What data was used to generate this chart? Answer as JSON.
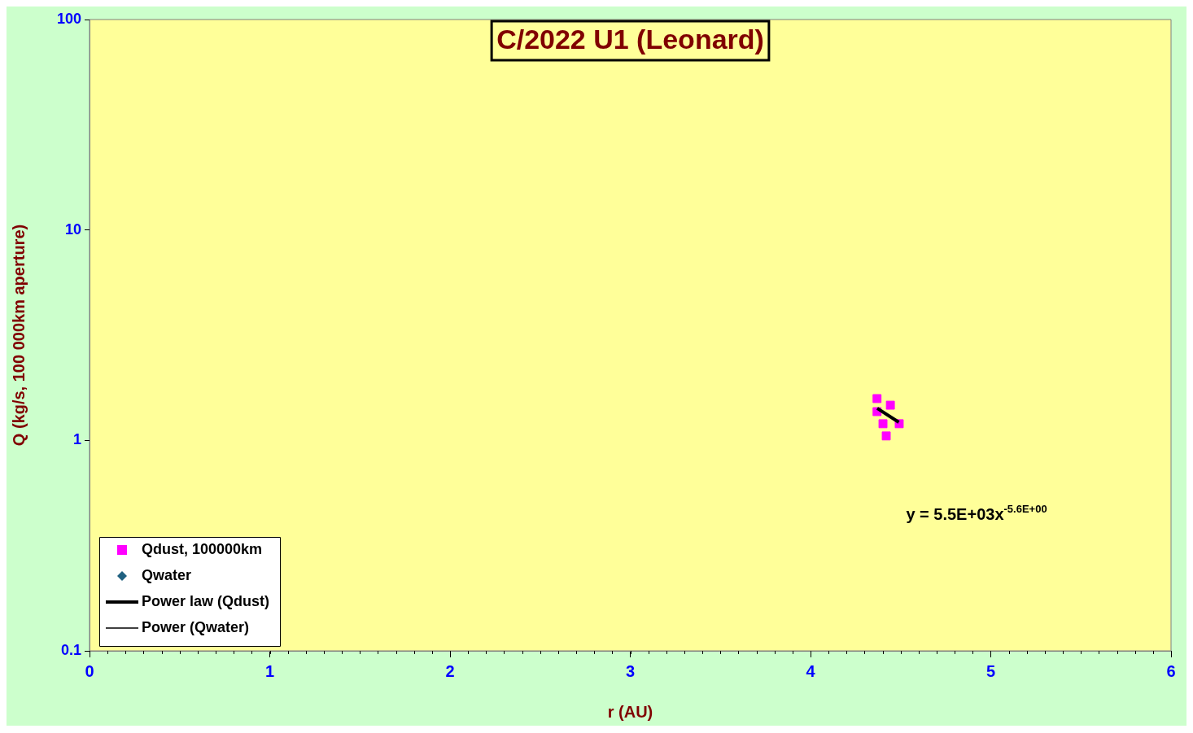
{
  "chart_data": {
    "type": "scatter",
    "title": "C/2022 U1 (Leonard)",
    "xlabel": "r (AU)",
    "ylabel": "Q (kg/s, 100 000km aperture)",
    "xlim": [
      0,
      6
    ],
    "xticks": [
      0,
      1,
      2,
      3,
      4,
      5,
      6
    ],
    "ylim": [
      0.1,
      100
    ],
    "yticks": [
      0.1,
      1,
      10,
      100
    ],
    "log": "y",
    "grid": false,
    "legend": "bottom left",
    "series": [
      {
        "name": "Qdust, 100000km",
        "type": "scatter",
        "marker": "square",
        "color": "#ff00ff",
        "x": [
          4.369,
          4.443,
          4.369,
          4.402,
          4.492,
          4.42
        ],
        "values": [
          1.58,
          1.47,
          1.37,
          1.2,
          1.2,
          1.05
        ]
      },
      {
        "name": "Qwater",
        "type": "scatter",
        "marker": "diamond",
        "color": "#1f6080"
      },
      {
        "name": "Power law (Qdust)",
        "type": "line",
        "marker": "none",
        "color": "#000000",
        "x": [
          4.37,
          4.49
        ],
        "values": [
          1.42,
          1.22
        ]
      },
      {
        "name": "Power (Qwater)",
        "type": "line",
        "marker": "none",
        "color": "#000000"
      }
    ],
    "annotations": [
      "y = 5.5E+03x$^{-5.6E+00}$"
    ]
  }
}
